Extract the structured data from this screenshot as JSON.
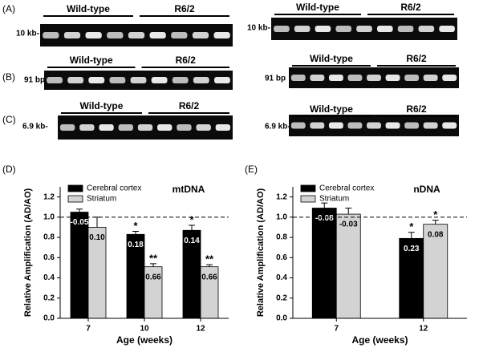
{
  "gels": [
    {
      "label": "(A)",
      "left": {
        "groups": [
          "Wild-type",
          "R6/2"
        ],
        "size": "10 kb-"
      },
      "right": {
        "groups": [
          "Wild-type",
          "R6/2"
        ],
        "size": "10 kb-"
      }
    },
    {
      "label": "(B)",
      "left": {
        "groups": [
          "Wild-type",
          "R6/2"
        ],
        "size": "91 bp"
      },
      "right": {
        "groups": [
          "Wild-type",
          "R6/2"
        ],
        "size": "91 bp"
      }
    },
    {
      "label": "(C)",
      "left": {
        "groups": [
          "Wild-type",
          "R6/2"
        ],
        "size": "6.9 kb-"
      },
      "right": {
        "groups": [
          "Wild-type",
          "R6/2"
        ],
        "size": "6.9 kb-"
      }
    }
  ],
  "chart_data": [
    {
      "type": "bar",
      "panel_label": "(D)",
      "title": "mtDNA",
      "xlabel": "Age (weeks)",
      "ylabel": "Relative Amplification (AD/AO)",
      "categories": [
        "7",
        "10",
        "12"
      ],
      "series": [
        {
          "name": "Cerebral cortex",
          "color": "#000000",
          "values": [
            1.05,
            0.83,
            0.87
          ],
          "errors": [
            0.03,
            0.03,
            0.05
          ],
          "bar_labels": [
            "-0.05",
            "0.18",
            "0.14"
          ],
          "significance": [
            null,
            "*",
            "*"
          ]
        },
        {
          "name": "Striatum",
          "color": "#d3d3d3",
          "values": [
            0.9,
            0.51,
            0.51
          ],
          "errors": [
            0.1,
            0.03,
            0.02
          ],
          "bar_labels": [
            "0.10",
            "0.66",
            "0.66"
          ],
          "significance": [
            null,
            "**",
            "**"
          ]
        }
      ],
      "ylim": [
        0,
        1.3
      ],
      "yticks": [
        {
          "value": 0,
          "label": "0.0"
        },
        {
          "value": 0.2,
          "label": "0.2"
        },
        {
          "value": 0.4,
          "label": "0.4"
        },
        {
          "value": 0.6,
          "label": "0.6"
        },
        {
          "value": 0.8,
          "label": "0.8"
        },
        {
          "value": 1,
          "label": "1.0"
        },
        {
          "value": 1.2,
          "label": "1.2"
        }
      ],
      "reference_line": 1.0,
      "legend": "upper left"
    },
    {
      "type": "bar",
      "panel_label": "(E)",
      "title": "nDNA",
      "xlabel": "Age (weeks)",
      "ylabel": "Relative Amplification (AD/AO)",
      "categories": [
        "7",
        "12"
      ],
      "series": [
        {
          "name": "Cerebral cortex",
          "color": "#000000",
          "values": [
            1.09,
            0.79
          ],
          "errors": [
            0.05,
            0.06
          ],
          "bar_labels": [
            "-0.08",
            "0.23"
          ],
          "significance": [
            null,
            "*"
          ]
        },
        {
          "name": "Striatum",
          "color": "#d3d3d3",
          "values": [
            1.03,
            0.93
          ],
          "errors": [
            0.06,
            0.04
          ],
          "bar_labels": [
            "-0.03",
            "0.08"
          ],
          "significance": [
            null,
            "*"
          ]
        }
      ],
      "ylim": [
        0,
        1.3
      ],
      "yticks": [
        {
          "value": 0,
          "label": "0.0"
        },
        {
          "value": 0.2,
          "label": "0.2"
        },
        {
          "value": 0.4,
          "label": "0.4"
        },
        {
          "value": 0.6,
          "label": "0.6"
        },
        {
          "value": 0.8,
          "label": "0.8"
        },
        {
          "value": 1,
          "label": "1.0"
        },
        {
          "value": 1.2,
          "label": "1.2"
        }
      ],
      "reference_line": 1.0,
      "legend": "upper left"
    }
  ]
}
